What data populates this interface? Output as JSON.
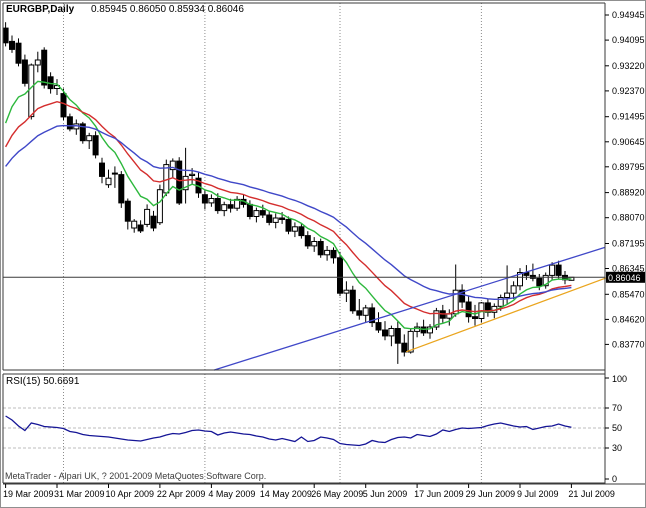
{
  "header": {
    "symbol": "EURGBP,Daily",
    "ohlc": "0.85945 0.86050 0.85934 0.86046"
  },
  "rsi_panel": {
    "label": "RSI(15) 50.6691"
  },
  "watermark": "MetaTrader - Alpari UK, ? 2001-2009 MetaQuotes Software Corp.",
  "chart_data": {
    "type": "candlestick",
    "title": "EURGBP,Daily",
    "symbol": "EURGBP",
    "timeframe": "Daily",
    "last_quote": {
      "open": "0.85945",
      "high": "0.86050",
      "low": "0.85934",
      "close": "0.86046"
    },
    "current_price": 0.86046,
    "current_price_label": "0.86046",
    "colors": {
      "background": "#ffffff",
      "frame": "#3a3a3a",
      "grid": "#8c8c8c",
      "bull_candle": "#ffffff",
      "bear_candle": "#000000",
      "candle_outline": "#000000",
      "ma_fast": "#2db83d",
      "ma_medium": "#d42e2e",
      "ma_slow": "#4048c8",
      "trendline_blue": "#4048c8",
      "trendline_yellow": "#eaa51e",
      "rsi_line": "#151596",
      "rsi_levels": "#bcbcbc",
      "price_line": "#3a3a3a",
      "price_tag_bg": "#000000",
      "price_tag_text": "#ffffff"
    },
    "y_axis_ticks": [
      "0.94945",
      "0.94095",
      "0.93220",
      "0.92370",
      "0.91495",
      "0.90645",
      "0.89795",
      "0.88920",
      "0.88070",
      "0.87195",
      "0.86345",
      "0.85470",
      "0.84620",
      "0.83770"
    ],
    "x_axis_labels": [
      {
        "i": 0,
        "label": "19 Mar 2009"
      },
      {
        "i": 8,
        "label": "31 Mar 2009"
      },
      {
        "i": 16,
        "label": "10 Apr 2009"
      },
      {
        "i": 24,
        "label": "22 Apr 2009"
      },
      {
        "i": 32,
        "label": "4 May 2009"
      },
      {
        "i": 40,
        "label": "14 May 2009"
      },
      {
        "i": 48,
        "label": "26 May 2009"
      },
      {
        "i": 56,
        "label": "5 Jun 2009"
      },
      {
        "i": 64,
        "label": "17 Jun 2009"
      },
      {
        "i": 72,
        "label": "29 Jun 2009"
      },
      {
        "i": 80,
        "label": "9 Jul 2009"
      },
      {
        "i": 88,
        "label": "21 Jul 2009"
      }
    ],
    "month_gridline_indices": [
      9,
      31,
      52,
      74
    ],
    "candles": [
      [
        0.945,
        0.947,
        0.9388,
        0.94
      ],
      [
        0.9405,
        0.9425,
        0.9366,
        0.9378
      ],
      [
        0.9399,
        0.9415,
        0.932,
        0.9331
      ],
      [
        0.9342,
        0.936,
        0.9252,
        0.9263
      ],
      [
        0.915,
        0.933,
        0.914,
        0.9325
      ],
      [
        0.9325,
        0.937,
        0.93,
        0.9342
      ],
      [
        0.9375,
        0.9385,
        0.9245,
        0.9257
      ],
      [
        0.9285,
        0.93,
        0.9228,
        0.9245
      ],
      [
        0.9245,
        0.9277,
        0.9223,
        0.9255
      ],
      [
        0.9228,
        0.9245,
        0.9138,
        0.9149
      ],
      [
        0.9149,
        0.916,
        0.91,
        0.9108
      ],
      [
        0.9108,
        0.914,
        0.9088,
        0.9125
      ],
      [
        0.9125,
        0.9132,
        0.9058,
        0.9068
      ],
      [
        0.9068,
        0.9095,
        0.904,
        0.9085
      ],
      [
        0.9085,
        0.91,
        0.9008,
        0.902
      ],
      [
        0.8992,
        0.901,
        0.8924,
        0.8947
      ],
      [
        0.8919,
        0.897,
        0.8908,
        0.8941
      ],
      [
        0.8955,
        0.8981,
        0.8908,
        0.8958
      ],
      [
        0.8953,
        0.8965,
        0.884,
        0.8857
      ],
      [
        0.8863,
        0.8872,
        0.8767,
        0.8795
      ],
      [
        0.8772,
        0.8802,
        0.8756,
        0.8795
      ],
      [
        0.8782,
        0.8798,
        0.8755,
        0.8762
      ],
      [
        0.8784,
        0.8852,
        0.8775,
        0.8835
      ],
      [
        0.8812,
        0.883,
        0.8761,
        0.8772
      ],
      [
        0.879,
        0.8919,
        0.8782,
        0.8902
      ],
      [
        0.8891,
        0.9004,
        0.888,
        0.8987
      ],
      [
        0.897,
        0.9008,
        0.894,
        0.8999
      ],
      [
        0.8999,
        0.9012,
        0.885,
        0.8857
      ],
      [
        0.8902,
        0.9044,
        0.8855,
        0.8947
      ],
      [
        0.895,
        0.8975,
        0.8918,
        0.8954
      ],
      [
        0.8941,
        0.8962,
        0.8874,
        0.8891
      ],
      [
        0.8885,
        0.8902,
        0.8835,
        0.8857
      ],
      [
        0.8857,
        0.8886,
        0.8844,
        0.8872
      ],
      [
        0.8872,
        0.889,
        0.882,
        0.8831
      ],
      [
        0.8831,
        0.8861,
        0.8812,
        0.8851
      ],
      [
        0.8851,
        0.8871,
        0.8824,
        0.8839
      ],
      [
        0.8839,
        0.888,
        0.883,
        0.8869
      ],
      [
        0.8869,
        0.8884,
        0.8841,
        0.8852
      ],
      [
        0.8852,
        0.8866,
        0.8801,
        0.8811
      ],
      [
        0.8811,
        0.8841,
        0.8791,
        0.8831
      ],
      [
        0.8831,
        0.8851,
        0.8806,
        0.8816
      ],
      [
        0.8816,
        0.8831,
        0.8781,
        0.8791
      ],
      [
        0.8791,
        0.8821,
        0.8771,
        0.8806
      ],
      [
        0.8806,
        0.8826,
        0.8786,
        0.8801
      ],
      [
        0.8801,
        0.8811,
        0.8751,
        0.8761
      ],
      [
        0.8761,
        0.8791,
        0.8741,
        0.8776
      ],
      [
        0.8776,
        0.8786,
        0.8736,
        0.8746
      ],
      [
        0.8746,
        0.8761,
        0.8701,
        0.8711
      ],
      [
        0.8711,
        0.8741,
        0.8691,
        0.8726
      ],
      [
        0.8726,
        0.8736,
        0.8671,
        0.8681
      ],
      [
        0.8681,
        0.8711,
        0.8661,
        0.8696
      ],
      [
        0.8696,
        0.8706,
        0.8651,
        0.8671
      ],
      [
        0.8671,
        0.8691,
        0.8541,
        0.8551
      ],
      [
        0.8551,
        0.8591,
        0.8521,
        0.8561
      ],
      [
        0.8561,
        0.8576,
        0.8481,
        0.8491
      ],
      [
        0.8491,
        0.8531,
        0.8461,
        0.8476
      ],
      [
        0.8476,
        0.8511,
        0.8451,
        0.8501
      ],
      [
        0.8501,
        0.8516,
        0.8436,
        0.8451
      ],
      [
        0.8451,
        0.8486,
        0.8416,
        0.8426
      ],
      [
        0.8426,
        0.8456,
        0.8391,
        0.8406
      ],
      [
        0.8406,
        0.8441,
        0.8371,
        0.8431
      ],
      [
        0.8431,
        0.8456,
        0.8311,
        0.8381
      ],
      [
        0.8381,
        0.8411,
        0.8336,
        0.8351
      ],
      [
        0.8351,
        0.8431,
        0.8346,
        0.8421
      ],
      [
        0.8421,
        0.8451,
        0.8401,
        0.8436
      ],
      [
        0.8436,
        0.8461,
        0.8406,
        0.8416
      ],
      [
        0.8416,
        0.8446,
        0.8396,
        0.8436
      ],
      [
        0.8436,
        0.8501,
        0.8426,
        0.8491
      ],
      [
        0.8491,
        0.8511,
        0.8451,
        0.8466
      ],
      [
        0.8466,
        0.8496,
        0.8441,
        0.8481
      ],
      [
        0.8481,
        0.8648,
        0.8471,
        0.8561
      ],
      [
        0.8561,
        0.8581,
        0.8501,
        0.8521
      ],
      [
        0.8521,
        0.8541,
        0.8451,
        0.8471
      ],
      [
        0.8471,
        0.8511,
        0.8441,
        0.8465
      ],
      [
        0.8465,
        0.8521,
        0.8451,
        0.8518
      ],
      [
        0.8518,
        0.8531,
        0.8471,
        0.8486
      ],
      [
        0.8486,
        0.8516,
        0.8466,
        0.8506
      ],
      [
        0.8506,
        0.8546,
        0.8491,
        0.8536
      ],
      [
        0.8536,
        0.8645,
        0.8511,
        0.8551
      ],
      [
        0.8551,
        0.8591,
        0.8531,
        0.8576
      ],
      [
        0.8576,
        0.8636,
        0.8561,
        0.8621
      ],
      [
        0.8621,
        0.8646,
        0.8596,
        0.8611
      ],
      [
        0.8611,
        0.8651,
        0.8591,
        0.8601
      ],
      [
        0.8601,
        0.8616,
        0.8561,
        0.8576
      ],
      [
        0.8576,
        0.8621,
        0.8566,
        0.8611
      ],
      [
        0.8611,
        0.8656,
        0.8596,
        0.8646
      ],
      [
        0.8646,
        0.8661,
        0.8601,
        0.8611
      ],
      [
        0.8611,
        0.8626,
        0.8581,
        0.8596
      ],
      [
        0.85945,
        0.8605,
        0.85934,
        0.86046
      ]
    ],
    "moving_averages": [
      {
        "name": "ma-fast-green",
        "period": 8,
        "seed": 0.905,
        "color": "#2db83d"
      },
      {
        "name": "ma-medium-red",
        "period": 16,
        "seed": 0.9,
        "color": "#d42e2e"
      },
      {
        "name": "ma-slow-blue",
        "period": 28,
        "seed": 0.895,
        "color": "#4048c8"
      }
    ],
    "trendlines": [
      {
        "name": "ascending-trendline-blue",
        "color": "#4048c8",
        "from": {
          "i": 32.4,
          "p": 0.829
        },
        "to": {
          "i": 93.2,
          "p": 0.8706
        }
      },
      {
        "name": "support-trendline-yellow",
        "color": "#eaa51e",
        "from": {
          "i": 62.3,
          "p": 0.8352
        },
        "to": {
          "i": 95.8,
          "p": 0.8622
        }
      }
    ],
    "rsi": {
      "name": "RSI",
      "period": 15,
      "current_value": 50.6691,
      "levels": [
        70,
        50,
        30
      ],
      "axis_ticks": [
        "100",
        "70",
        "50",
        "30",
        "0"
      ],
      "values": [
        62,
        58,
        52,
        47.5,
        55,
        53.5,
        51.5,
        51,
        50.5,
        49.5,
        46.5,
        45.5,
        43.5,
        42.5,
        42,
        41.5,
        41,
        40,
        39,
        38,
        37.5,
        37,
        38.5,
        40,
        41,
        43,
        44.5,
        44,
        45.5,
        47.5,
        48,
        47,
        46.5,
        43,
        45,
        46,
        45,
        44,
        43.5,
        42,
        41,
        39,
        38,
        39.5,
        38,
        36.5,
        41,
        36.5,
        37.5,
        41,
        40,
        38.5,
        34.5,
        33.5,
        33,
        32.5,
        34,
        37.5,
        36,
        35.5,
        38.5,
        40.5,
        41,
        40,
        43.5,
        42.5,
        41.5,
        44,
        48,
        46.5,
        48.5,
        50,
        49.5,
        50,
        50.5,
        52.5,
        54,
        55,
        53.5,
        52,
        51,
        51.5,
        48.5,
        50,
        51.5,
        52,
        54,
        52,
        50.67
      ]
    }
  }
}
